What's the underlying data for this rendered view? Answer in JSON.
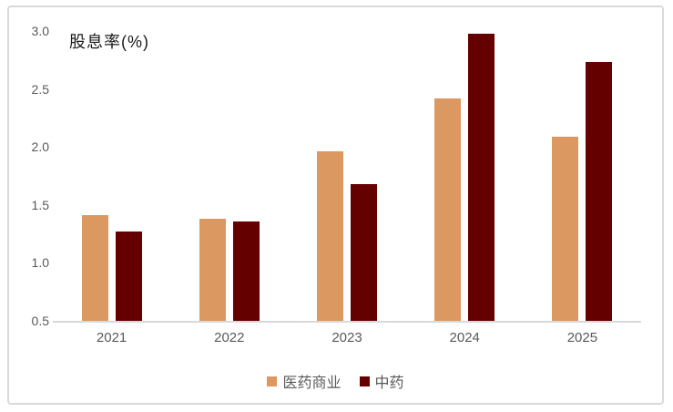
{
  "chart_data": {
    "type": "bar",
    "title": "股息率(%)",
    "categories": [
      "2021",
      "2022",
      "2023",
      "2024",
      "2025"
    ],
    "series": [
      {
        "key": "pharma-commerce",
        "name": "医药商业",
        "color": "#DB9861",
        "values": [
          1.41,
          1.38,
          1.96,
          2.42,
          2.09
        ]
      },
      {
        "key": "tcm",
        "name": "中药",
        "color": "#650000",
        "values": [
          1.27,
          1.36,
          1.68,
          2.98,
          2.73
        ]
      }
    ],
    "ylim": [
      0.5,
      3.0
    ],
    "yticks": [
      0.5,
      1.0,
      1.5,
      2.0,
      2.5,
      3.0
    ],
    "ytick_format_decimals": 1,
    "xlabel": "",
    "ylabel": "",
    "grid": "off",
    "legend_position": "bottom-center",
    "axis_line_color": "#d9d9d9",
    "tick_label_color": "#595959"
  }
}
